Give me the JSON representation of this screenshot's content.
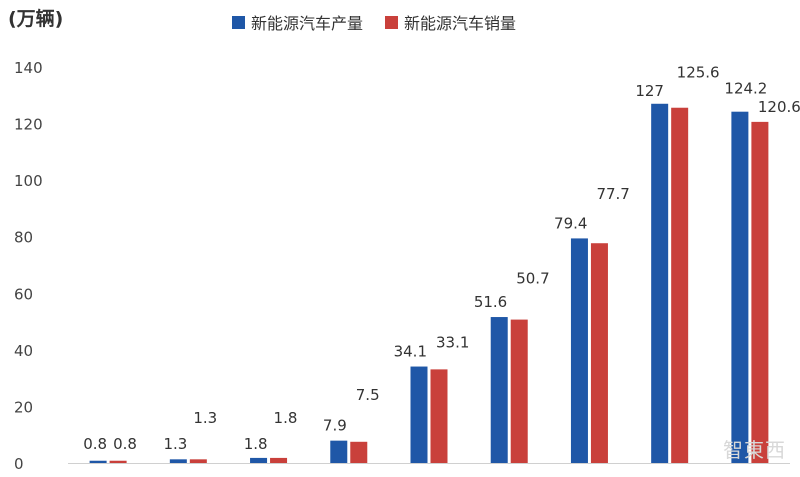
{
  "chart_data": {
    "type": "bar",
    "unit_label": "(万辆)",
    "ylim": [
      0,
      140
    ],
    "yticks": [
      0,
      20,
      40,
      60,
      80,
      100,
      120,
      140
    ],
    "grid": false,
    "legend_position": "top",
    "categories": [
      "",
      "",
      "",
      "",
      "",
      "",
      "",
      "",
      ""
    ],
    "series": [
      {
        "name": "新能源汽车产量",
        "color": "#1f57a7",
        "values": [
          0.8,
          1.3,
          1.8,
          7.9,
          34.1,
          51.6,
          79.4,
          127,
          124.2
        ],
        "labels": [
          "0.8",
          "1.3",
          "1.8",
          "7.9",
          "34.1",
          "51.6",
          "79.4",
          "127",
          "124.2"
        ]
      },
      {
        "name": "新能源汽车销量",
        "color": "#c9403b",
        "values": [
          0.8,
          1.3,
          1.8,
          7.5,
          33.1,
          50.7,
          77.7,
          125.6,
          120.6
        ],
        "labels": [
          "0.8",
          "1.3",
          "1.8",
          "7.5",
          "33.1",
          "50.7",
          "77.7",
          "125.6",
          "120.6"
        ]
      }
    ]
  },
  "watermark": "智東西"
}
